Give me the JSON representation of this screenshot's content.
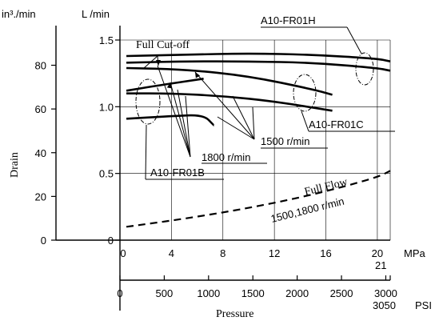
{
  "chart_data": {
    "type": "line",
    "ylabel": "Drain",
    "xlabel": "Pressure",
    "left_unit": "in³./min",
    "right_unit": "L /min",
    "x_unit_mpa": "MPa",
    "x_unit_psi": "PSI",
    "ticks_in3": [
      "0",
      "20",
      "40",
      "60",
      "80"
    ],
    "ticks_lmin": [
      "0",
      "0.5",
      "1.0",
      "1.5"
    ],
    "ticks_mpa": [
      "0",
      "4",
      "8",
      "12",
      "16",
      "20"
    ],
    "tick_mpa_end": "21",
    "ticks_psi": [
      "0",
      "500",
      "1000",
      "1500",
      "2000",
      "2500",
      "3000"
    ],
    "tick_psi_end": "3050",
    "xlim_mpa": [
      0,
      21
    ],
    "ylim_lmin": [
      0,
      1.5
    ],
    "series": [
      {
        "name": "A10-FR01H",
        "x": [
          0.5,
          5,
          10,
          15,
          20,
          21
        ],
        "y": [
          1.38,
          1.39,
          1.4,
          1.39,
          1.36,
          1.34
        ],
        "style": "solid"
      },
      {
        "name": "A10-FR01H",
        "x": [
          0.5,
          5,
          10,
          15,
          20,
          21
        ],
        "y": [
          1.33,
          1.34,
          1.34,
          1.33,
          1.29,
          1.27
        ],
        "style": "solid"
      },
      {
        "name": "A10-FR01B",
        "x": [
          0.5,
          3,
          6.5
        ],
        "y": [
          1.12,
          1.16,
          1.21
        ],
        "style": "solid"
      },
      {
        "name": "A10-FR01C",
        "x": [
          0.5,
          5,
          10,
          15,
          16.5
        ],
        "y": [
          1.29,
          1.28,
          1.23,
          1.13,
          1.09
        ],
        "style": "solid"
      },
      {
        "name": "A10-FR01C",
        "x": [
          0.5,
          4,
          8,
          12,
          16.5
        ],
        "y": [
          1.1,
          1.1,
          1.08,
          1.04,
          0.97
        ],
        "style": "solid"
      },
      {
        "name": "A10-FR01B",
        "x": [
          0.5,
          4,
          6.5,
          7.3
        ],
        "y": [
          0.91,
          0.93,
          0.94,
          0.86
        ],
        "style": "solid"
      },
      {
        "name": "Full Flow",
        "x": [
          0.5,
          5,
          10,
          15,
          20,
          21
        ],
        "y": [
          0.1,
          0.16,
          0.24,
          0.34,
          0.47,
          0.52
        ],
        "style": "dashed"
      }
    ],
    "annotations": {
      "full_cutoff": "Full Cut-off",
      "full_flow": "Full Flow",
      "full_flow_speeds": "1500,1800 r/min",
      "speed_1800": "1800 r/min",
      "speed_1500": "1500 r/min",
      "label_h": "A10-FR01H",
      "label_c": "A10-FR01C",
      "label_b": "A10-FR01B"
    },
    "grid": true
  }
}
